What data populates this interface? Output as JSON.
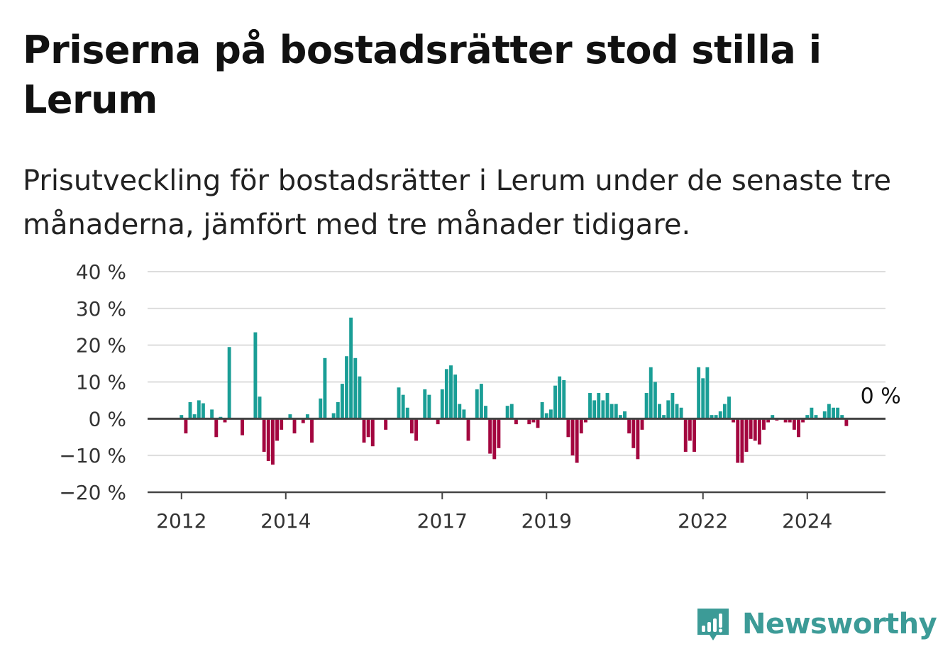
{
  "title": "Priserna på bostadsrätter stod stilla i Lerum",
  "subtitle": "Prisutveckling för bostadsrätter i Lerum under de senaste tre månaderna, jämfört med tre månader tidigare.",
  "brand": {
    "name": "Newsworthy",
    "icon": "newsworthy-logo-icon",
    "color": "#3c9b97"
  },
  "chart_data": {
    "type": "bar",
    "title": "",
    "xlabel": "",
    "ylabel": "",
    "ylim": [
      -20,
      40
    ],
    "y_ticks": [
      40,
      30,
      20,
      10,
      0,
      -10,
      -20
    ],
    "y_tick_labels": [
      "40 %",
      "30 %",
      "20 %",
      "10 %",
      "0 %",
      "−10 %",
      "−20 %"
    ],
    "x_ticks": [
      {
        "label": "2012",
        "year": 2012.0
      },
      {
        "label": "2014",
        "year": 2014.0
      },
      {
        "label": "2017",
        "year": 2017.0
      },
      {
        "label": "2019",
        "year": 2019.0
      },
      {
        "label": "2022",
        "year": 2022.0
      },
      {
        "label": "2024",
        "year": 2024.0
      }
    ],
    "x_domain": [
      2011.35,
      2025.5
    ],
    "grid": true,
    "colors": {
      "positive": "#1a9e96",
      "negative": "#a3063f",
      "grid": "#dddddd",
      "axis": "#444444"
    },
    "annotation": {
      "label": "0 %",
      "date": "2025-01",
      "value": 0
    },
    "series": [
      {
        "values": [
          {
            "date": "2012-01",
            "value": 1
          },
          {
            "date": "2012-02",
            "value": -4
          },
          {
            "date": "2012-03",
            "value": 4.5
          },
          {
            "date": "2012-04",
            "value": 1.2
          },
          {
            "date": "2012-05",
            "value": 5
          },
          {
            "date": "2012-06",
            "value": 4.2
          },
          {
            "date": "2012-07",
            "value": 0
          },
          {
            "date": "2012-08",
            "value": 2.5
          },
          {
            "date": "2012-09",
            "value": -5
          },
          {
            "date": "2012-10",
            "value": 0.5
          },
          {
            "date": "2012-11",
            "value": -1
          },
          {
            "date": "2012-12",
            "value": 19.5
          },
          {
            "date": "2013-01",
            "value": 0
          },
          {
            "date": "2013-02",
            "value": 0
          },
          {
            "date": "2013-03",
            "value": -4.5
          },
          {
            "date": "2013-04",
            "value": 0
          },
          {
            "date": "2013-05",
            "value": 0
          },
          {
            "date": "2013-06",
            "value": 23.5
          },
          {
            "date": "2013-07",
            "value": 6
          },
          {
            "date": "2013-08",
            "value": -9
          },
          {
            "date": "2013-09",
            "value": -11.5
          },
          {
            "date": "2013-10",
            "value": -12.5
          },
          {
            "date": "2013-11",
            "value": -6
          },
          {
            "date": "2013-12",
            "value": -3
          },
          {
            "date": "2014-01",
            "value": 0
          },
          {
            "date": "2014-02",
            "value": 1.2
          },
          {
            "date": "2014-03",
            "value": -4
          },
          {
            "date": "2014-04",
            "value": 0
          },
          {
            "date": "2014-05",
            "value": -1.2
          },
          {
            "date": "2014-06",
            "value": 1.2
          },
          {
            "date": "2014-07",
            "value": -6.5
          },
          {
            "date": "2014-08",
            "value": 0
          },
          {
            "date": "2014-09",
            "value": 5.5
          },
          {
            "date": "2014-10",
            "value": 16.5
          },
          {
            "date": "2014-11",
            "value": 0
          },
          {
            "date": "2014-12",
            "value": 1.5
          },
          {
            "date": "2015-01",
            "value": 4.5
          },
          {
            "date": "2015-02",
            "value": 9.5
          },
          {
            "date": "2015-03",
            "value": 17
          },
          {
            "date": "2015-04",
            "value": 27.5
          },
          {
            "date": "2015-05",
            "value": 16.5
          },
          {
            "date": "2015-06",
            "value": 11.5
          },
          {
            "date": "2015-07",
            "value": -6.5
          },
          {
            "date": "2015-08",
            "value": -5
          },
          {
            "date": "2015-09",
            "value": -7.5
          },
          {
            "date": "2015-10",
            "value": 0
          },
          {
            "date": "2015-11",
            "value": 0
          },
          {
            "date": "2015-12",
            "value": -3
          },
          {
            "date": "2016-01",
            "value": 0
          },
          {
            "date": "2016-02",
            "value": 0
          },
          {
            "date": "2016-03",
            "value": 8.5
          },
          {
            "date": "2016-04",
            "value": 6.5
          },
          {
            "date": "2016-05",
            "value": 3
          },
          {
            "date": "2016-06",
            "value": -4
          },
          {
            "date": "2016-07",
            "value": -6
          },
          {
            "date": "2016-08",
            "value": 0
          },
          {
            "date": "2016-09",
            "value": 8
          },
          {
            "date": "2016-10",
            "value": 6.5
          },
          {
            "date": "2016-11",
            "value": 0
          },
          {
            "date": "2016-12",
            "value": -1.5
          },
          {
            "date": "2017-01",
            "value": 8
          },
          {
            "date": "2017-02",
            "value": 13.5
          },
          {
            "date": "2017-03",
            "value": 14.5
          },
          {
            "date": "2017-04",
            "value": 12
          },
          {
            "date": "2017-05",
            "value": 4
          },
          {
            "date": "2017-06",
            "value": 2.5
          },
          {
            "date": "2017-07",
            "value": -6
          },
          {
            "date": "2017-08",
            "value": 0
          },
          {
            "date": "2017-09",
            "value": 8
          },
          {
            "date": "2017-10",
            "value": 9.5
          },
          {
            "date": "2017-11",
            "value": 3.5
          },
          {
            "date": "2017-12",
            "value": -9.5
          },
          {
            "date": "2018-01",
            "value": -11
          },
          {
            "date": "2018-02",
            "value": -8
          },
          {
            "date": "2018-03",
            "value": 0
          },
          {
            "date": "2018-04",
            "value": 3.5
          },
          {
            "date": "2018-05",
            "value": 4
          },
          {
            "date": "2018-06",
            "value": -1.5
          },
          {
            "date": "2018-07",
            "value": 0
          },
          {
            "date": "2018-08",
            "value": 0
          },
          {
            "date": "2018-09",
            "value": -1.5
          },
          {
            "date": "2018-10",
            "value": -1
          },
          {
            "date": "2018-11",
            "value": -2.5
          },
          {
            "date": "2018-12",
            "value": 4.5
          },
          {
            "date": "2019-01",
            "value": 1.5
          },
          {
            "date": "2019-02",
            "value": 2.5
          },
          {
            "date": "2019-03",
            "value": 9
          },
          {
            "date": "2019-04",
            "value": 11.5
          },
          {
            "date": "2019-05",
            "value": 10.5
          },
          {
            "date": "2019-06",
            "value": -5
          },
          {
            "date": "2019-07",
            "value": -10
          },
          {
            "date": "2019-08",
            "value": -12
          },
          {
            "date": "2019-09",
            "value": -4
          },
          {
            "date": "2019-10",
            "value": -1
          },
          {
            "date": "2019-11",
            "value": 7
          },
          {
            "date": "2019-12",
            "value": 5
          },
          {
            "date": "2020-01",
            "value": 7
          },
          {
            "date": "2020-02",
            "value": 5
          },
          {
            "date": "2020-03",
            "value": 7
          },
          {
            "date": "2020-04",
            "value": 4
          },
          {
            "date": "2020-05",
            "value": 4
          },
          {
            "date": "2020-06",
            "value": 1
          },
          {
            "date": "2020-07",
            "value": 2
          },
          {
            "date": "2020-08",
            "value": -4
          },
          {
            "date": "2020-09",
            "value": -8
          },
          {
            "date": "2020-10",
            "value": -11
          },
          {
            "date": "2020-11",
            "value": -3
          },
          {
            "date": "2020-12",
            "value": 7
          },
          {
            "date": "2021-01",
            "value": 14
          },
          {
            "date": "2021-02",
            "value": 10
          },
          {
            "date": "2021-03",
            "value": 4
          },
          {
            "date": "2021-04",
            "value": 1
          },
          {
            "date": "2021-05",
            "value": 5
          },
          {
            "date": "2021-06",
            "value": 7
          },
          {
            "date": "2021-07",
            "value": 4
          },
          {
            "date": "2021-08",
            "value": 3
          },
          {
            "date": "2021-09",
            "value": -9
          },
          {
            "date": "2021-10",
            "value": -6
          },
          {
            "date": "2021-11",
            "value": -9
          },
          {
            "date": "2021-12",
            "value": 14
          },
          {
            "date": "2022-01",
            "value": 11
          },
          {
            "date": "2022-02",
            "value": 14
          },
          {
            "date": "2022-03",
            "value": 1
          },
          {
            "date": "2022-04",
            "value": 1
          },
          {
            "date": "2022-05",
            "value": 2
          },
          {
            "date": "2022-06",
            "value": 4
          },
          {
            "date": "2022-07",
            "value": 6
          },
          {
            "date": "2022-08",
            "value": -1
          },
          {
            "date": "2022-09",
            "value": -12
          },
          {
            "date": "2022-10",
            "value": -12
          },
          {
            "date": "2022-11",
            "value": -9
          },
          {
            "date": "2022-12",
            "value": -5.5
          },
          {
            "date": "2023-01",
            "value": -6
          },
          {
            "date": "2023-02",
            "value": -7
          },
          {
            "date": "2023-03",
            "value": -3
          },
          {
            "date": "2023-04",
            "value": -1
          },
          {
            "date": "2023-05",
            "value": 1
          },
          {
            "date": "2023-06",
            "value": -0.5
          },
          {
            "date": "2023-07",
            "value": 0
          },
          {
            "date": "2023-08",
            "value": -1
          },
          {
            "date": "2023-09",
            "value": -1
          },
          {
            "date": "2023-10",
            "value": -3
          },
          {
            "date": "2023-11",
            "value": -5
          },
          {
            "date": "2023-12",
            "value": -1
          },
          {
            "date": "2024-01",
            "value": 1
          },
          {
            "date": "2024-02",
            "value": 3
          },
          {
            "date": "2024-03",
            "value": 1
          },
          {
            "date": "2024-04",
            "value": 0
          },
          {
            "date": "2024-05",
            "value": 2
          },
          {
            "date": "2024-06",
            "value": 4
          },
          {
            "date": "2024-07",
            "value": 3
          },
          {
            "date": "2024-08",
            "value": 3
          },
          {
            "date": "2024-09",
            "value": 1
          },
          {
            "date": "2024-10",
            "value": -2
          },
          {
            "date": "2024-11",
            "value": 0
          },
          {
            "date": "2024-12",
            "value": 0
          },
          {
            "date": "2025-01",
            "value": 0
          }
        ]
      }
    ]
  }
}
